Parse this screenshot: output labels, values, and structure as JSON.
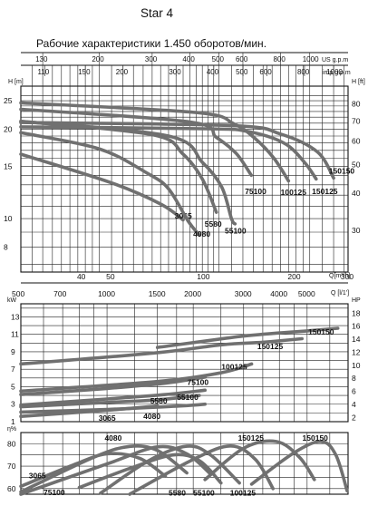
{
  "header": {
    "model": "Star 4",
    "subtitle": "Рабочие характеристики 1.450 оборотов/мин."
  },
  "chart_data": [
    {
      "type": "line",
      "name_id": "head",
      "xscale": "log",
      "yscale": "log",
      "xlim": [
        110,
        1340
      ],
      "ylim": [
        6.6,
        28
      ],
      "axis_top": {
        "us_label": "US g.p.m",
        "us_ticks": [
          130,
          200,
          300,
          400,
          500,
          600,
          800,
          1000
        ],
        "imp_label": "imp g.p.m",
        "imp_ticks": [
          110,
          150,
          200,
          300,
          400,
          500,
          600,
          800,
          1000
        ]
      },
      "yaxis_left": {
        "label": "H [m]",
        "ticks": [
          25,
          20,
          15,
          10,
          8
        ]
      },
      "yaxis_right": {
        "label": "H [ft]",
        "ticks": [
          80,
          70,
          60,
          50,
          40,
          30
        ]
      },
      "xaxis_bottom": {
        "label": "Q[m³/h]",
        "ticks": [
          40,
          50,
          100,
          200,
          300
        ]
      },
      "series": [
        {
          "label": "3065",
          "points": [
            [
              110,
              16.5
            ],
            [
              220,
              13.2
            ],
            [
              320,
              11.2
            ],
            [
              380,
              9.9
            ]
          ],
          "label_at": [
            382,
            10.0
          ]
        },
        {
          "label": "4080",
          "points": [
            [
              110,
              19.5
            ],
            [
              200,
              17.2
            ],
            [
              290,
              14.2
            ],
            [
              340,
              12.6
            ],
            [
              395,
              9.8
            ],
            [
              430,
              8.8
            ]
          ],
          "label_at": [
            440,
            8.7
          ]
        },
        {
          "label": "5580",
          "points": [
            [
              110,
              21.3
            ],
            [
              300,
              19.2
            ],
            [
              380,
              16.5
            ],
            [
              440,
              13.6
            ],
            [
              490,
              10.5
            ]
          ],
          "label_at": [
            480,
            9.4
          ]
        },
        {
          "label": "55100",
          "points": [
            [
              110,
              21.3
            ],
            [
              340,
              19.0
            ],
            [
              440,
              15.5
            ],
            [
              510,
              12.8
            ],
            [
              550,
              10.0
            ],
            [
              565,
              9.6
            ]
          ],
          "label_at": [
            560,
            8.9
          ]
        },
        {
          "label": "75100",
          "points": [
            [
              110,
              23.4
            ],
            [
              400,
              21.2
            ],
            [
              490,
              18.8
            ],
            [
              570,
              16.6
            ],
            [
              640,
              14.0
            ]
          ],
          "label_at": [
            653,
            12.1
          ]
        },
        {
          "label": "100125",
          "points": [
            [
              110,
              24.6
            ],
            [
              420,
              22.8
            ],
            [
              560,
              20.9
            ],
            [
              660,
              18.6
            ],
            [
              760,
              16.0
            ],
            [
              850,
              13.4
            ]
          ],
          "label_at": [
            858,
            12.0
          ]
        },
        {
          "label": "150125",
          "points": [
            [
              110,
              20.4
            ],
            [
              450,
              20.1
            ],
            [
              620,
              19.7
            ],
            [
              820,
              18.0
            ],
            [
              960,
              15.5
            ],
            [
              1050,
              13.6
            ]
          ],
          "label_at": [
            1090,
            12.1
          ]
        },
        {
          "label": "150150",
          "points": [
            [
              110,
              21.1
            ],
            [
              550,
              20.6
            ],
            [
              800,
              19.3
            ],
            [
              1060,
              16.8
            ],
            [
              1200,
              13.7
            ]
          ],
          "label_at": [
            1240,
            14.2
          ]
        }
      ]
    },
    {
      "type": "line",
      "name_id": "power",
      "xscale": "log",
      "xlim": [
        500,
        6950
      ],
      "ylim": [
        1,
        14.5
      ],
      "axis_top": {
        "label": "Q [l/1']",
        "ticks": [
          500,
          700,
          1000,
          1500,
          2000,
          3000,
          4000,
          5000
        ]
      },
      "yaxis_left": {
        "label": "kW",
        "ticks": [
          1,
          3,
          5,
          7,
          9,
          11,
          13
        ]
      },
      "yaxis_right": {
        "label": "HP",
        "ticks": [
          2,
          4,
          6,
          8,
          10,
          12,
          14,
          16,
          18
        ]
      },
      "series": [
        {
          "label": "3065",
          "points": [
            [
              500,
              1.6
            ],
            [
              1000,
              2.3
            ],
            [
              1500,
              2.8
            ]
          ],
          "label_at": [
            990,
            1.4
          ]
        },
        {
          "label": "4080",
          "points": [
            [
              500,
              2.1
            ],
            [
              1000,
              2.4
            ],
            [
              1800,
              2.8
            ],
            [
              2200,
              3.0
            ]
          ],
          "label_at": [
            1420,
            1.6
          ]
        },
        {
          "label": "5580",
          "points": [
            [
              500,
              2.7
            ],
            [
              1000,
              3.2
            ],
            [
              1500,
              3.5
            ],
            [
              2100,
              4.0
            ]
          ],
          "label_at": [
            1500,
            3.4
          ]
        },
        {
          "label": "55100",
          "points": [
            [
              500,
              2.9
            ],
            [
              1000,
              3.6
            ],
            [
              1600,
              4.1
            ],
            [
              2200,
              4.6
            ]
          ],
          "label_at": [
            1860,
            3.8
          ]
        },
        {
          "label": "75100",
          "points": [
            [
              500,
              4.1
            ],
            [
              1000,
              4.8
            ],
            [
              1600,
              5.4
            ],
            [
              2200,
              6.1
            ]
          ],
          "label_at": [
            2020,
            5.5
          ]
        },
        {
          "label": "100125",
          "points": [
            [
              500,
              4.5
            ],
            [
              1500,
              5.6
            ],
            [
              2500,
              6.6
            ],
            [
              3200,
              7.6
            ]
          ],
          "label_at": [
            2660,
            7.3
          ]
        },
        {
          "label": "150125",
          "points": [
            [
              500,
              7.6
            ],
            [
              1500,
              8.9
            ],
            [
              2500,
              9.8
            ],
            [
              3500,
              10.1
            ],
            [
              4800,
              10.5
            ]
          ],
          "label_at": [
            3550,
            9.6
          ]
        },
        {
          "label": "150150",
          "points": [
            [
              1500,
              9.5
            ],
            [
              3000,
              10.8
            ],
            [
              5000,
              11.4
            ],
            [
              6400,
              11.7
            ]
          ],
          "label_at": [
            5350,
            11.3
          ]
        }
      ]
    },
    {
      "type": "line",
      "name_id": "efficiency",
      "xscale": "log",
      "xlim": [
        500,
        6950
      ],
      "ylim": [
        57.5,
        85
      ],
      "yaxis_left": {
        "label": "η%",
        "ticks": [
          80,
          70,
          60
        ]
      },
      "series": [
        {
          "label": "3065",
          "points": [
            [
              500,
              61.0
            ],
            [
              760,
              70.5
            ],
            [
              1000,
              75.5
            ],
            [
              1300,
              73.5
            ],
            [
              1600,
              65.5
            ]
          ],
          "label_at": [
            565,
            65.8
          ]
        },
        {
          "label": "4080",
          "points": [
            [
              500,
              58.5
            ],
            [
              900,
              74.0
            ],
            [
              1200,
              78.8
            ],
            [
              1500,
              77.0
            ],
            [
              1900,
              67.0
            ]
          ],
          "label_at": [
            1040,
            82.5
          ]
        },
        {
          "label": "5580",
          "points": [
            [
              500,
              57.5
            ],
            [
              1000,
              71.0
            ],
            [
              1500,
              78.6
            ],
            [
              1900,
              75.5
            ],
            [
              2300,
              66.5
            ]
          ],
          "label_at": [
            1740,
            58.2
          ]
        },
        {
          "label": "55100",
          "points": [
            [
              950,
              58.0
            ],
            [
              1400,
              72.5
            ],
            [
              1900,
              78.9
            ],
            [
              2300,
              75.0
            ],
            [
              2900,
              62.5
            ]
          ],
          "label_at": [
            2120,
            58.2
          ]
        },
        {
          "label": "75100",
          "points": [
            [
              800,
              60.5
            ],
            [
              1200,
              69.0
            ],
            [
              1700,
              75.0
            ],
            [
              2100,
              72.5
            ],
            [
              2500,
              62.5
            ]
          ],
          "label_at": [
            636,
            58.4
          ]
        },
        {
          "label": "100125",
          "points": [
            [
              1200,
              57.5
            ],
            [
              2000,
              73.0
            ],
            [
              2700,
              79.0
            ],
            [
              3300,
              73.0
            ],
            [
              3800,
              60.0
            ]
          ],
          "label_at": [
            2850,
            58.2
          ]
        },
        {
          "label": "150125",
          "points": [
            [
              2200,
              64.0
            ],
            [
              3000,
              78.0
            ],
            [
              3900,
              81.0
            ],
            [
              4700,
              74.0
            ],
            [
              5300,
              64.0
            ]
          ],
          "label_at": [
            3040,
            82.6
          ]
        },
        {
          "label": "150150",
          "points": [
            [
              3200,
              62.0
            ],
            [
              4500,
              76.0
            ],
            [
              5600,
              81.0
            ],
            [
              6300,
              75.0
            ],
            [
              6900,
              59.0
            ]
          ],
          "label_at": [
            5100,
            82.6
          ]
        }
      ]
    }
  ]
}
